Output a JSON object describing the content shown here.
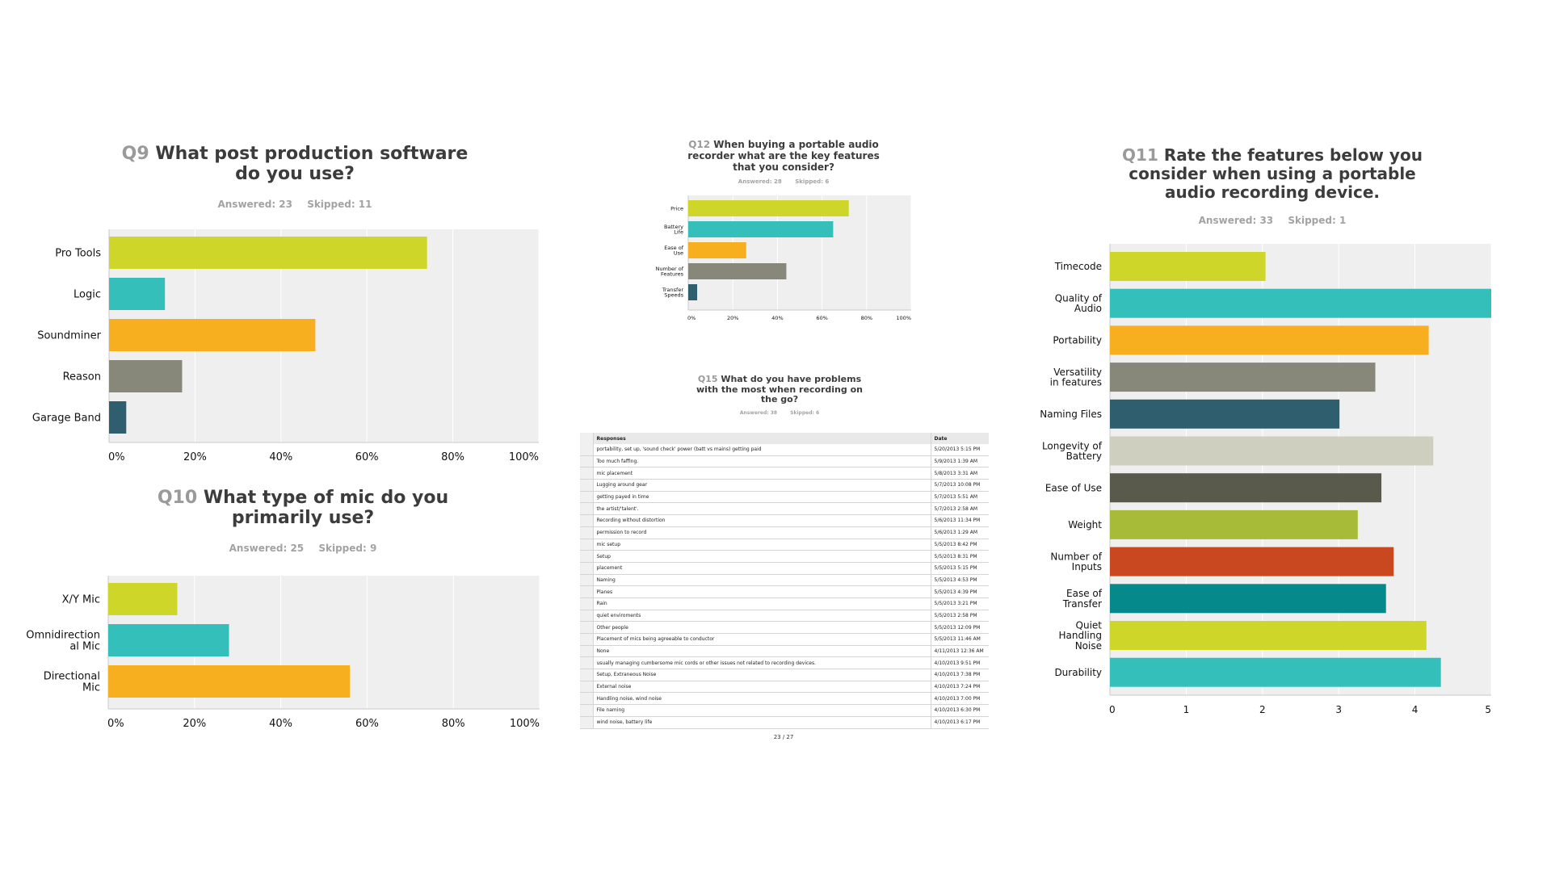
{
  "colors": {
    "lime": "#cfd62a",
    "teal": "#35bfbb",
    "orange": "#f7af1f",
    "gray": "#87877a",
    "navy": "#2f5f6e",
    "cream": "#cfcfbf",
    "darkgray": "#5a5a4c",
    "olive": "#a7bb39",
    "rust": "#c9481f",
    "darkteal": "#05898a",
    "plotbg": "#efefef"
  },
  "q9": {
    "num": "Q9",
    "text": "What post production software do you use?",
    "answered": "Answered: 23",
    "skipped": "Skipped: 11"
  },
  "q10": {
    "num": "Q10",
    "text": "What type of mic do you primarily use?",
    "answered": "Answered: 25",
    "skipped": "Skipped: 9"
  },
  "q11": {
    "num": "Q11",
    "text": "Rate the features below you consider when using a portable audio recording device.",
    "answered": "Answered: 33",
    "skipped": "Skipped: 1"
  },
  "q12": {
    "num": "Q12",
    "text": "When buying a portable audio recorder what are the key features that you consider?",
    "answered": "Answered: 28",
    "skipped": "Skipped: 6"
  },
  "q15": {
    "num": "Q15",
    "text": "What do you have problems with the most when recording on the go?",
    "answered": "Answered: 38",
    "skipped": "Skipped: 6",
    "headers": {
      "responses": "Responses",
      "date": "Date"
    },
    "rows": [
      [
        "portability, set up, 'sound check' power (batt vs mains) getting paid",
        "5/20/2013 5:15 PM"
      ],
      [
        "Too much faffing.",
        "5/9/2013 1:39 AM"
      ],
      [
        "mic placement",
        "5/8/2013 3:31 AM"
      ],
      [
        "Lugging around gear",
        "5/7/2013 10:08 PM"
      ],
      [
        "getting payed in time",
        "5/7/2013 5:51 AM"
      ],
      [
        "the artist/'talent'.",
        "5/7/2013 2:58 AM"
      ],
      [
        "Recording without distortion",
        "5/6/2013 11:34 PM"
      ],
      [
        "permission to record",
        "5/6/2013 1:29 AM"
      ],
      [
        "mic setup",
        "5/5/2013 8:42 PM"
      ],
      [
        "Setup",
        "5/5/2013 8:31 PM"
      ],
      [
        "placement",
        "5/5/2013 5:15 PM"
      ],
      [
        "Naming",
        "5/5/2013 4:53 PM"
      ],
      [
        "Planes",
        "5/5/2013 4:39 PM"
      ],
      [
        "Rain",
        "5/5/2013 3:21 PM"
      ],
      [
        "quiet enviroments",
        "5/5/2013 2:58 PM"
      ],
      [
        "Other people",
        "5/5/2013 12:09 PM"
      ],
      [
        "Placement of mics being agreeable to conductor",
        "5/5/2013 11:46 AM"
      ],
      [
        "None",
        "4/11/2013 12:36 AM"
      ],
      [
        "usually managing cumbersome mic cords or other issues not related to recording devices.",
        "4/10/2013 9:51 PM"
      ],
      [
        "Setup, Extraneous Noise",
        "4/10/2013 7:38 PM"
      ],
      [
        "External noise",
        "4/10/2013 7:24 PM"
      ],
      [
        "Handling noise, wind noise",
        "4/10/2013 7:00 PM"
      ],
      [
        "File naming",
        "4/10/2013 6:30 PM"
      ],
      [
        "wind noise, battery life",
        "4/10/2013 6:17 PM"
      ]
    ],
    "page": "23 / 27"
  },
  "chart_data": [
    {
      "id": "q9",
      "type": "bar",
      "orientation": "horizontal",
      "categories": [
        "Pro Tools",
        "Logic",
        "Soundminer",
        "Reason",
        "Garage Band"
      ],
      "values": [
        74,
        13,
        48,
        17,
        4
      ],
      "colors": [
        "#cfd62a",
        "#35bfbb",
        "#f7af1f",
        "#87877a",
        "#2f5f6e"
      ],
      "xlim": [
        0,
        100
      ],
      "ticks": [
        "0%",
        "20%",
        "40%",
        "60%",
        "80%",
        "100%"
      ],
      "grid": true
    },
    {
      "id": "q10",
      "type": "bar",
      "orientation": "horizontal",
      "categories": [
        "X/Y Mic",
        "Omnidirection al Mic",
        "Directional Mic"
      ],
      "values": [
        16,
        28,
        56
      ],
      "colors": [
        "#cfd62a",
        "#35bfbb",
        "#f7af1f"
      ],
      "xlim": [
        0,
        100
      ],
      "ticks": [
        "0%",
        "20%",
        "40%",
        "60%",
        "80%",
        "100%"
      ],
      "grid": true
    },
    {
      "id": "q12",
      "type": "bar",
      "orientation": "horizontal",
      "categories": [
        "Price",
        "Battery Life",
        "Ease of Use",
        "Number of Features",
        "Transfer Speeds"
      ],
      "values": [
        72,
        65,
        26,
        44,
        4
      ],
      "colors": [
        "#cfd62a",
        "#35bfbb",
        "#f7af1f",
        "#87877a",
        "#2f5f6e"
      ],
      "xlim": [
        0,
        100
      ],
      "ticks": [
        "0%",
        "20%",
        "40%",
        "60%",
        "80%",
        "100%"
      ],
      "grid": true
    },
    {
      "id": "q11",
      "type": "bar",
      "orientation": "horizontal",
      "categories": [
        "Timecode",
        "Quality of Audio",
        "Portability",
        "Versatility in features",
        "Naming Files",
        "Longevity of Battery",
        "Ease of Use",
        "Weight",
        "Number of Inputs",
        "Ease of Transfer",
        "Quiet Handling Noise",
        "Durability"
      ],
      "values": [
        2.04,
        5.0,
        4.18,
        3.48,
        3.01,
        4.24,
        3.56,
        3.25,
        3.72,
        3.62,
        4.15,
        4.34
      ],
      "colors": [
        "#cfd62a",
        "#35bfbb",
        "#f7af1f",
        "#87877a",
        "#2f5f6e",
        "#cfcfbf",
        "#5a5a4c",
        "#a7bb39",
        "#c9481f",
        "#05898a",
        "#cfd62a",
        "#35bfbb"
      ],
      "xlim": [
        0,
        5
      ],
      "ticks": [
        "0",
        "1",
        "2",
        "3",
        "4",
        "5"
      ],
      "grid": true
    }
  ]
}
